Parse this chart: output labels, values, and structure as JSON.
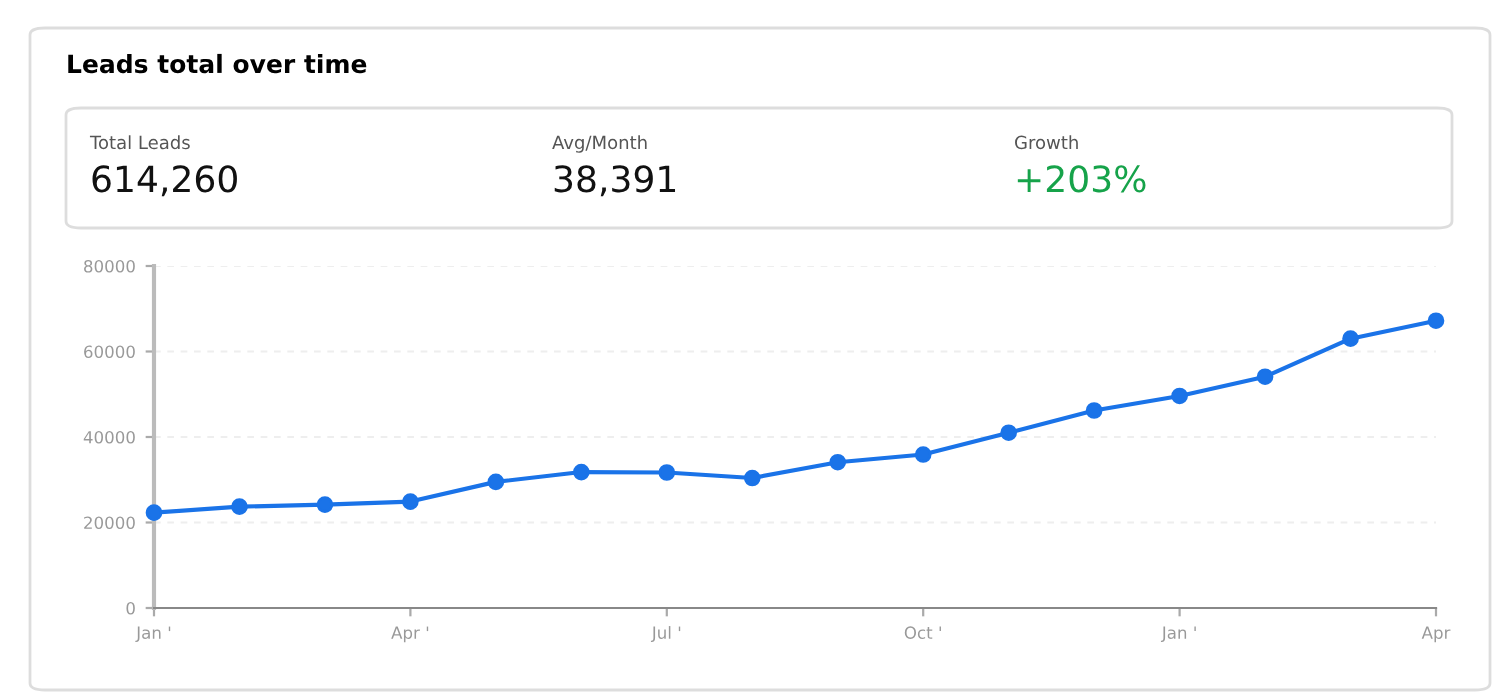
{
  "chart_data": {
    "type": "line",
    "title": "Leads total over time",
    "annotations": [
      "Total Leads",
      "614,260",
      "Avg/Month",
      "38,391",
      "Growth",
      "+203%"
    ],
    "categories": [
      "Jan '",
      null,
      null,
      "Apr '",
      null,
      null,
      "Jul '",
      null,
      null,
      "Oct '",
      null,
      null,
      "Jan '",
      null,
      null,
      "Apr"
    ],
    "series": [
      {
        "color": "#1a73e8",
        "values": [
          22300,
          23700,
          24200,
          24900,
          29500,
          31800,
          31700,
          30400,
          34100,
          35900,
          41000,
          46200,
          49600,
          54100,
          63000,
          67200
        ]
      }
    ],
    "ylim": [
      0,
      80000
    ],
    "yticks": [
      0,
      20000,
      40000,
      60000,
      80000
    ],
    "grid": "y",
    "marker": "circle",
    "line_style": "solid",
    "legend": false
  }
}
